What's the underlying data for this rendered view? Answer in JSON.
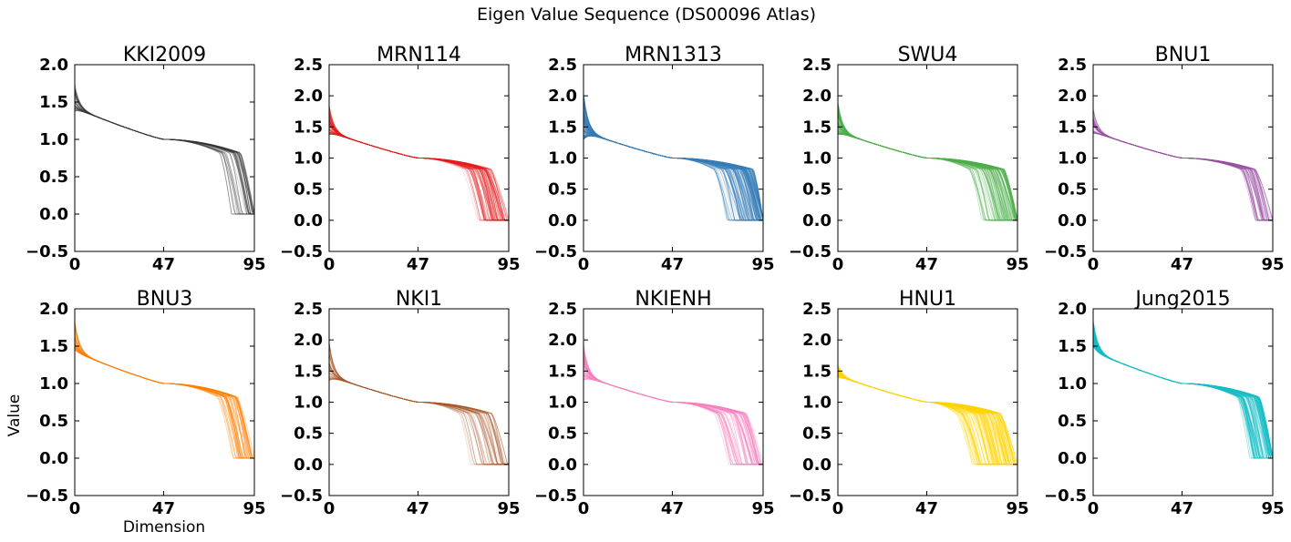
{
  "figure": {
    "title": "Eigen Value Sequence (DS00096 Atlas)",
    "xlabel": "Dimension",
    "ylabel": "Value"
  },
  "chart_data": [
    {
      "type": "line",
      "title": "KKI2009",
      "color": "#333333",
      "ylim": [
        -0.5,
        2.0
      ],
      "yticks": [
        "−0.5",
        "0.0",
        "0.5",
        "1.0",
        "1.5",
        "2.0"
      ],
      "xlim": [
        0,
        95
      ],
      "xticks": [
        "0",
        "47",
        "95"
      ],
      "n_dims": 95,
      "series_count": 40,
      "start_range": [
        1.38,
        1.75
      ],
      "mid_value": 1.0,
      "drop_start": [
        75,
        88
      ],
      "end_value": 0.0
    },
    {
      "type": "line",
      "title": "MRN114",
      "color": "#e41a1c",
      "ylim": [
        -0.5,
        2.5
      ],
      "yticks": [
        "−0.5",
        "0.0",
        "0.5",
        "1.0",
        "1.5",
        "2.0",
        "2.5"
      ],
      "xlim": [
        0,
        95
      ],
      "xticks": [
        "0",
        "47",
        "95"
      ],
      "n_dims": 95,
      "series_count": 60,
      "start_range": [
        1.38,
        1.85
      ],
      "mid_value": 1.0,
      "drop_start": [
        70,
        86
      ],
      "end_value": 0.0
    },
    {
      "type": "line",
      "title": "MRN1313",
      "color": "#377eb8",
      "ylim": [
        -0.5,
        2.5
      ],
      "yticks": [
        "−0.5",
        "0.0",
        "0.5",
        "1.0",
        "1.5",
        "2.0",
        "2.5"
      ],
      "xlim": [
        0,
        95
      ],
      "xticks": [
        "0",
        "47",
        "95"
      ],
      "n_dims": 95,
      "series_count": 140,
      "start_range": [
        1.3,
        2.05
      ],
      "mid_value": 1.0,
      "drop_start": [
        68,
        90
      ],
      "end_value": 0.0
    },
    {
      "type": "line",
      "title": "SWU4",
      "color": "#4daf4a",
      "ylim": [
        -0.5,
        2.5
      ],
      "yticks": [
        "−0.5",
        "0.0",
        "0.5",
        "1.0",
        "1.5",
        "2.0",
        "2.5"
      ],
      "xlim": [
        0,
        95
      ],
      "xticks": [
        "0",
        "47",
        "95"
      ],
      "n_dims": 95,
      "series_count": 90,
      "start_range": [
        1.38,
        1.9
      ],
      "mid_value": 1.0,
      "drop_start": [
        68,
        88
      ],
      "end_value": 0.0
    },
    {
      "type": "line",
      "title": "BNU1",
      "color": "#984ea3",
      "ylim": [
        -0.5,
        2.5
      ],
      "yticks": [
        "−0.5",
        "0.0",
        "0.5",
        "1.0",
        "1.5",
        "2.0",
        "2.5"
      ],
      "xlim": [
        0,
        95
      ],
      "xticks": [
        "0",
        "47",
        "95"
      ],
      "n_dims": 95,
      "series_count": 40,
      "start_range": [
        1.4,
        1.8
      ],
      "mid_value": 1.0,
      "drop_start": [
        76,
        86
      ],
      "end_value": 0.0
    },
    {
      "type": "line",
      "title": "BNU3",
      "color": "#ff7f00",
      "ylim": [
        -0.5,
        2.0
      ],
      "yticks": [
        "−0.5",
        "0.0",
        "0.5",
        "1.0",
        "1.5",
        "2.0"
      ],
      "xlim": [
        0,
        95
      ],
      "xticks": [
        "0",
        "47",
        "95"
      ],
      "n_dims": 95,
      "series_count": 40,
      "start_range": [
        1.45,
        1.85
      ],
      "mid_value": 1.0,
      "drop_start": [
        74,
        86
      ],
      "end_value": 0.0
    },
    {
      "type": "line",
      "title": "NKI1",
      "color": "#a65628",
      "ylim": [
        -0.5,
        2.5
      ],
      "yticks": [
        "−0.5",
        "0.0",
        "0.5",
        "1.0",
        "1.5",
        "2.0",
        "2.5"
      ],
      "xlim": [
        0,
        95
      ],
      "xticks": [
        "0",
        "47",
        "95"
      ],
      "n_dims": 95,
      "series_count": 35,
      "start_range": [
        1.35,
        2.0
      ],
      "mid_value": 1.0,
      "drop_start": [
        68,
        86
      ],
      "end_value": 0.0
    },
    {
      "type": "line",
      "title": "NKIENH",
      "color": "#f781bf",
      "ylim": [
        -0.5,
        2.5
      ],
      "yticks": [
        "−0.5",
        "0.0",
        "0.5",
        "1.0",
        "1.5",
        "2.0",
        "2.5"
      ],
      "xlim": [
        0,
        95
      ],
      "xticks": [
        "0",
        "47",
        "95"
      ],
      "n_dims": 95,
      "series_count": 60,
      "start_range": [
        1.35,
        1.95
      ],
      "mid_value": 1.0,
      "drop_start": [
        66,
        86
      ],
      "end_value": 0.0
    },
    {
      "type": "line",
      "title": "HNU1",
      "color": "#ffd400",
      "ylim": [
        -0.5,
        2.5
      ],
      "yticks": [
        "−0.5",
        "0.0",
        "0.5",
        "1.0",
        "1.5",
        "2.0",
        "2.5"
      ],
      "xlim": [
        0,
        95
      ],
      "xticks": [
        "0",
        "47",
        "95"
      ],
      "n_dims": 95,
      "series_count": 120,
      "start_range": [
        1.4,
        1.6
      ],
      "mid_value": 1.0,
      "drop_start": [
        62,
        86
      ],
      "end_value": 0.0
    },
    {
      "type": "line",
      "title": "Jung2015",
      "color": "#17bfc7",
      "ylim": [
        -0.5,
        2.0
      ],
      "yticks": [
        "−0.5",
        "0.0",
        "0.5",
        "1.0",
        "1.5",
        "2.0"
      ],
      "xlim": [
        0,
        95
      ],
      "xticks": [
        "0",
        "47",
        "95"
      ],
      "n_dims": 95,
      "series_count": 100,
      "start_range": [
        1.5,
        1.85
      ],
      "mid_value": 1.0,
      "drop_start": [
        76,
        88
      ],
      "end_value": 0.0
    }
  ]
}
